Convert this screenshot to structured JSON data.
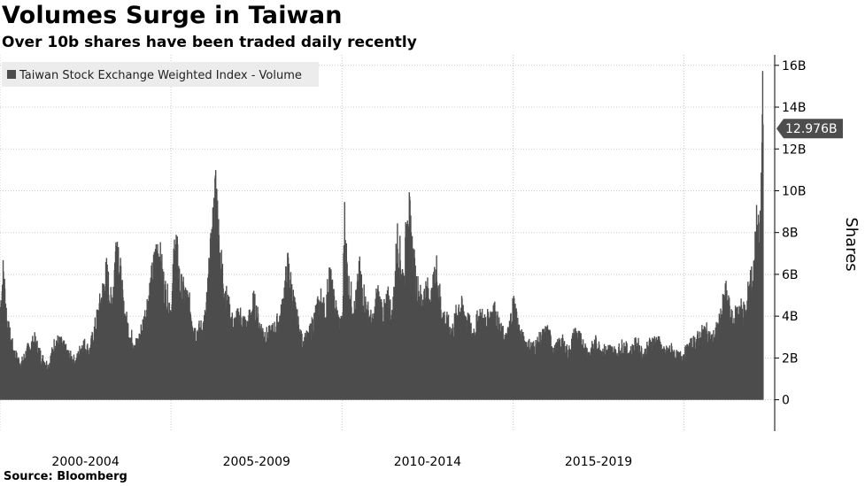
{
  "title": "Volumes Surge in Taiwan",
  "subtitle": "Over 10b shares have been traded daily recently",
  "source": "Source: Bloomberg",
  "colors": {
    "bars": "#4d4d4d",
    "grid": "#c8c8c8",
    "callout_bg": "#4d4d4d",
    "legend_bg": "#ececec"
  },
  "chart_data": {
    "type": "area",
    "title": "Volumes Surge in Taiwan",
    "subtitle": "Over 10b shares have been traded daily recently",
    "ylabel": "Shares",
    "xlabel": "",
    "legend": {
      "placement": "top-left",
      "entries": [
        "Taiwan Stock Exchange Weighted Index - Volume"
      ]
    },
    "grid": true,
    "x_range": [
      1999.0,
      2021.65
    ],
    "ylim": [
      -1.5,
      16.5
    ],
    "y_ticks": [
      {
        "value": 0,
        "label": "0"
      },
      {
        "value": 2,
        "label": "2B"
      },
      {
        "value": 4,
        "label": "4B"
      },
      {
        "value": 6,
        "label": "6B"
      },
      {
        "value": 8,
        "label": "8B"
      },
      {
        "value": 10,
        "label": "10B"
      },
      {
        "value": 12,
        "label": "12B"
      },
      {
        "value": 14,
        "label": "14B"
      },
      {
        "value": 16,
        "label": "16B"
      }
    ],
    "x_gridlines": [
      1999.0,
      2004.0,
      2009.0,
      2014.0,
      2019.0
    ],
    "x_categories": [
      {
        "label": "2000-2004",
        "center": 2001.5
      },
      {
        "label": "2005-2009",
        "center": 2006.5
      },
      {
        "label": "2010-2014",
        "center": 2011.5
      },
      {
        "label": "2015-2019",
        "center": 2016.5
      }
    ],
    "last_value": {
      "x": 2021.3,
      "value": 12.976,
      "label": "12.976B"
    },
    "series": [
      {
        "name": "Taiwan Stock Exchange Weighted Index - Volume",
        "unit": "billion shares",
        "points": [
          [
            1999.0,
            4.5
          ],
          [
            1999.08,
            6.1
          ],
          [
            1999.2,
            3.5
          ],
          [
            1999.4,
            2.2
          ],
          [
            1999.6,
            1.7
          ],
          [
            1999.8,
            2.4
          ],
          [
            2000.0,
            2.8
          ],
          [
            2000.2,
            2.0
          ],
          [
            2000.4,
            1.6
          ],
          [
            2000.6,
            2.8
          ],
          [
            2000.8,
            2.6
          ],
          [
            2001.0,
            2.1
          ],
          [
            2001.2,
            1.8
          ],
          [
            2001.4,
            2.7
          ],
          [
            2001.6,
            2.3
          ],
          [
            2001.8,
            3.7
          ],
          [
            2002.0,
            5.2
          ],
          [
            2002.1,
            6.0
          ],
          [
            2002.25,
            4.4
          ],
          [
            2002.4,
            7.9
          ],
          [
            2002.6,
            4.2
          ],
          [
            2002.8,
            3.0
          ],
          [
            2003.0,
            2.6
          ],
          [
            2003.2,
            3.8
          ],
          [
            2003.4,
            5.5
          ],
          [
            2003.6,
            7.3
          ],
          [
            2003.8,
            5.2
          ],
          [
            2004.0,
            4.2
          ],
          [
            2004.1,
            7.9
          ],
          [
            2004.25,
            5.4
          ],
          [
            2004.5,
            4.6
          ],
          [
            2004.7,
            3.2
          ],
          [
            2004.9,
            3.4
          ],
          [
            2005.0,
            4.0
          ],
          [
            2005.1,
            6.1
          ],
          [
            2005.2,
            8.0
          ],
          [
            2005.3,
            10.3
          ],
          [
            2005.4,
            7.0
          ],
          [
            2005.6,
            4.8
          ],
          [
            2005.8,
            3.5
          ],
          [
            2006.0,
            4.0
          ],
          [
            2006.2,
            3.4
          ],
          [
            2006.4,
            4.6
          ],
          [
            2006.6,
            3.4
          ],
          [
            2006.8,
            3.0
          ],
          [
            2007.0,
            3.3
          ],
          [
            2007.2,
            4.0
          ],
          [
            2007.4,
            6.3
          ],
          [
            2007.6,
            4.3
          ],
          [
            2007.8,
            2.8
          ],
          [
            2008.0,
            2.9
          ],
          [
            2008.2,
            4.0
          ],
          [
            2008.4,
            4.9
          ],
          [
            2008.5,
            3.8
          ],
          [
            2008.6,
            6.1
          ],
          [
            2008.7,
            5.0
          ],
          [
            2008.9,
            3.6
          ],
          [
            2009.0,
            3.5
          ],
          [
            2009.05,
            8.7
          ],
          [
            2009.15,
            5.6
          ],
          [
            2009.35,
            4.2
          ],
          [
            2009.5,
            6.0
          ],
          [
            2009.7,
            4.3
          ],
          [
            2009.9,
            3.5
          ],
          [
            2010.0,
            5.0
          ],
          [
            2010.2,
            4.1
          ],
          [
            2010.35,
            4.8
          ],
          [
            2010.45,
            3.8
          ],
          [
            2010.6,
            7.6
          ],
          [
            2010.8,
            5.5
          ],
          [
            2010.9,
            9.8
          ],
          [
            2011.0,
            7.6
          ],
          [
            2011.15,
            5.5
          ],
          [
            2011.3,
            4.7
          ],
          [
            2011.45,
            5.2
          ],
          [
            2011.6,
            4.8
          ],
          [
            2011.75,
            6.2
          ],
          [
            2011.9,
            4.1
          ],
          [
            2012.0,
            3.8
          ],
          [
            2012.2,
            3.2
          ],
          [
            2012.4,
            4.5
          ],
          [
            2012.6,
            4.0
          ],
          [
            2012.8,
            3.1
          ],
          [
            2013.0,
            4.0
          ],
          [
            2013.2,
            3.6
          ],
          [
            2013.4,
            4.4
          ],
          [
            2013.6,
            3.3
          ],
          [
            2013.8,
            2.8
          ],
          [
            2014.0,
            4.6
          ],
          [
            2014.2,
            3.0
          ],
          [
            2014.4,
            2.6
          ],
          [
            2014.6,
            2.5
          ],
          [
            2014.8,
            2.9
          ],
          [
            2015.0,
            3.2
          ],
          [
            2015.2,
            2.3
          ],
          [
            2015.4,
            2.8
          ],
          [
            2015.6,
            2.2
          ],
          [
            2015.8,
            3.2
          ],
          [
            2016.0,
            2.7
          ],
          [
            2016.2,
            2.2
          ],
          [
            2016.4,
            2.7
          ],
          [
            2016.6,
            2.3
          ],
          [
            2016.8,
            2.4
          ],
          [
            2017.0,
            2.2
          ],
          [
            2017.2,
            2.6
          ],
          [
            2017.4,
            2.2
          ],
          [
            2017.6,
            2.7
          ],
          [
            2017.8,
            2.1
          ],
          [
            2018.0,
            2.7
          ],
          [
            2018.2,
            2.8
          ],
          [
            2018.4,
            2.2
          ],
          [
            2018.6,
            2.4
          ],
          [
            2018.8,
            2.0
          ],
          [
            2019.0,
            2.2
          ],
          [
            2019.2,
            2.6
          ],
          [
            2019.4,
            2.9
          ],
          [
            2019.6,
            3.3
          ],
          [
            2019.8,
            2.8
          ],
          [
            2020.0,
            3.5
          ],
          [
            2020.2,
            5.0
          ],
          [
            2020.4,
            3.6
          ],
          [
            2020.6,
            4.4
          ],
          [
            2020.8,
            4.0
          ],
          [
            2020.9,
            5.8
          ],
          [
            2021.0,
            5.5
          ],
          [
            2021.1,
            8.1
          ],
          [
            2021.2,
            7.4
          ],
          [
            2021.25,
            10.5
          ],
          [
            2021.28,
            15.0
          ],
          [
            2021.3,
            12.976
          ]
        ]
      }
    ]
  }
}
